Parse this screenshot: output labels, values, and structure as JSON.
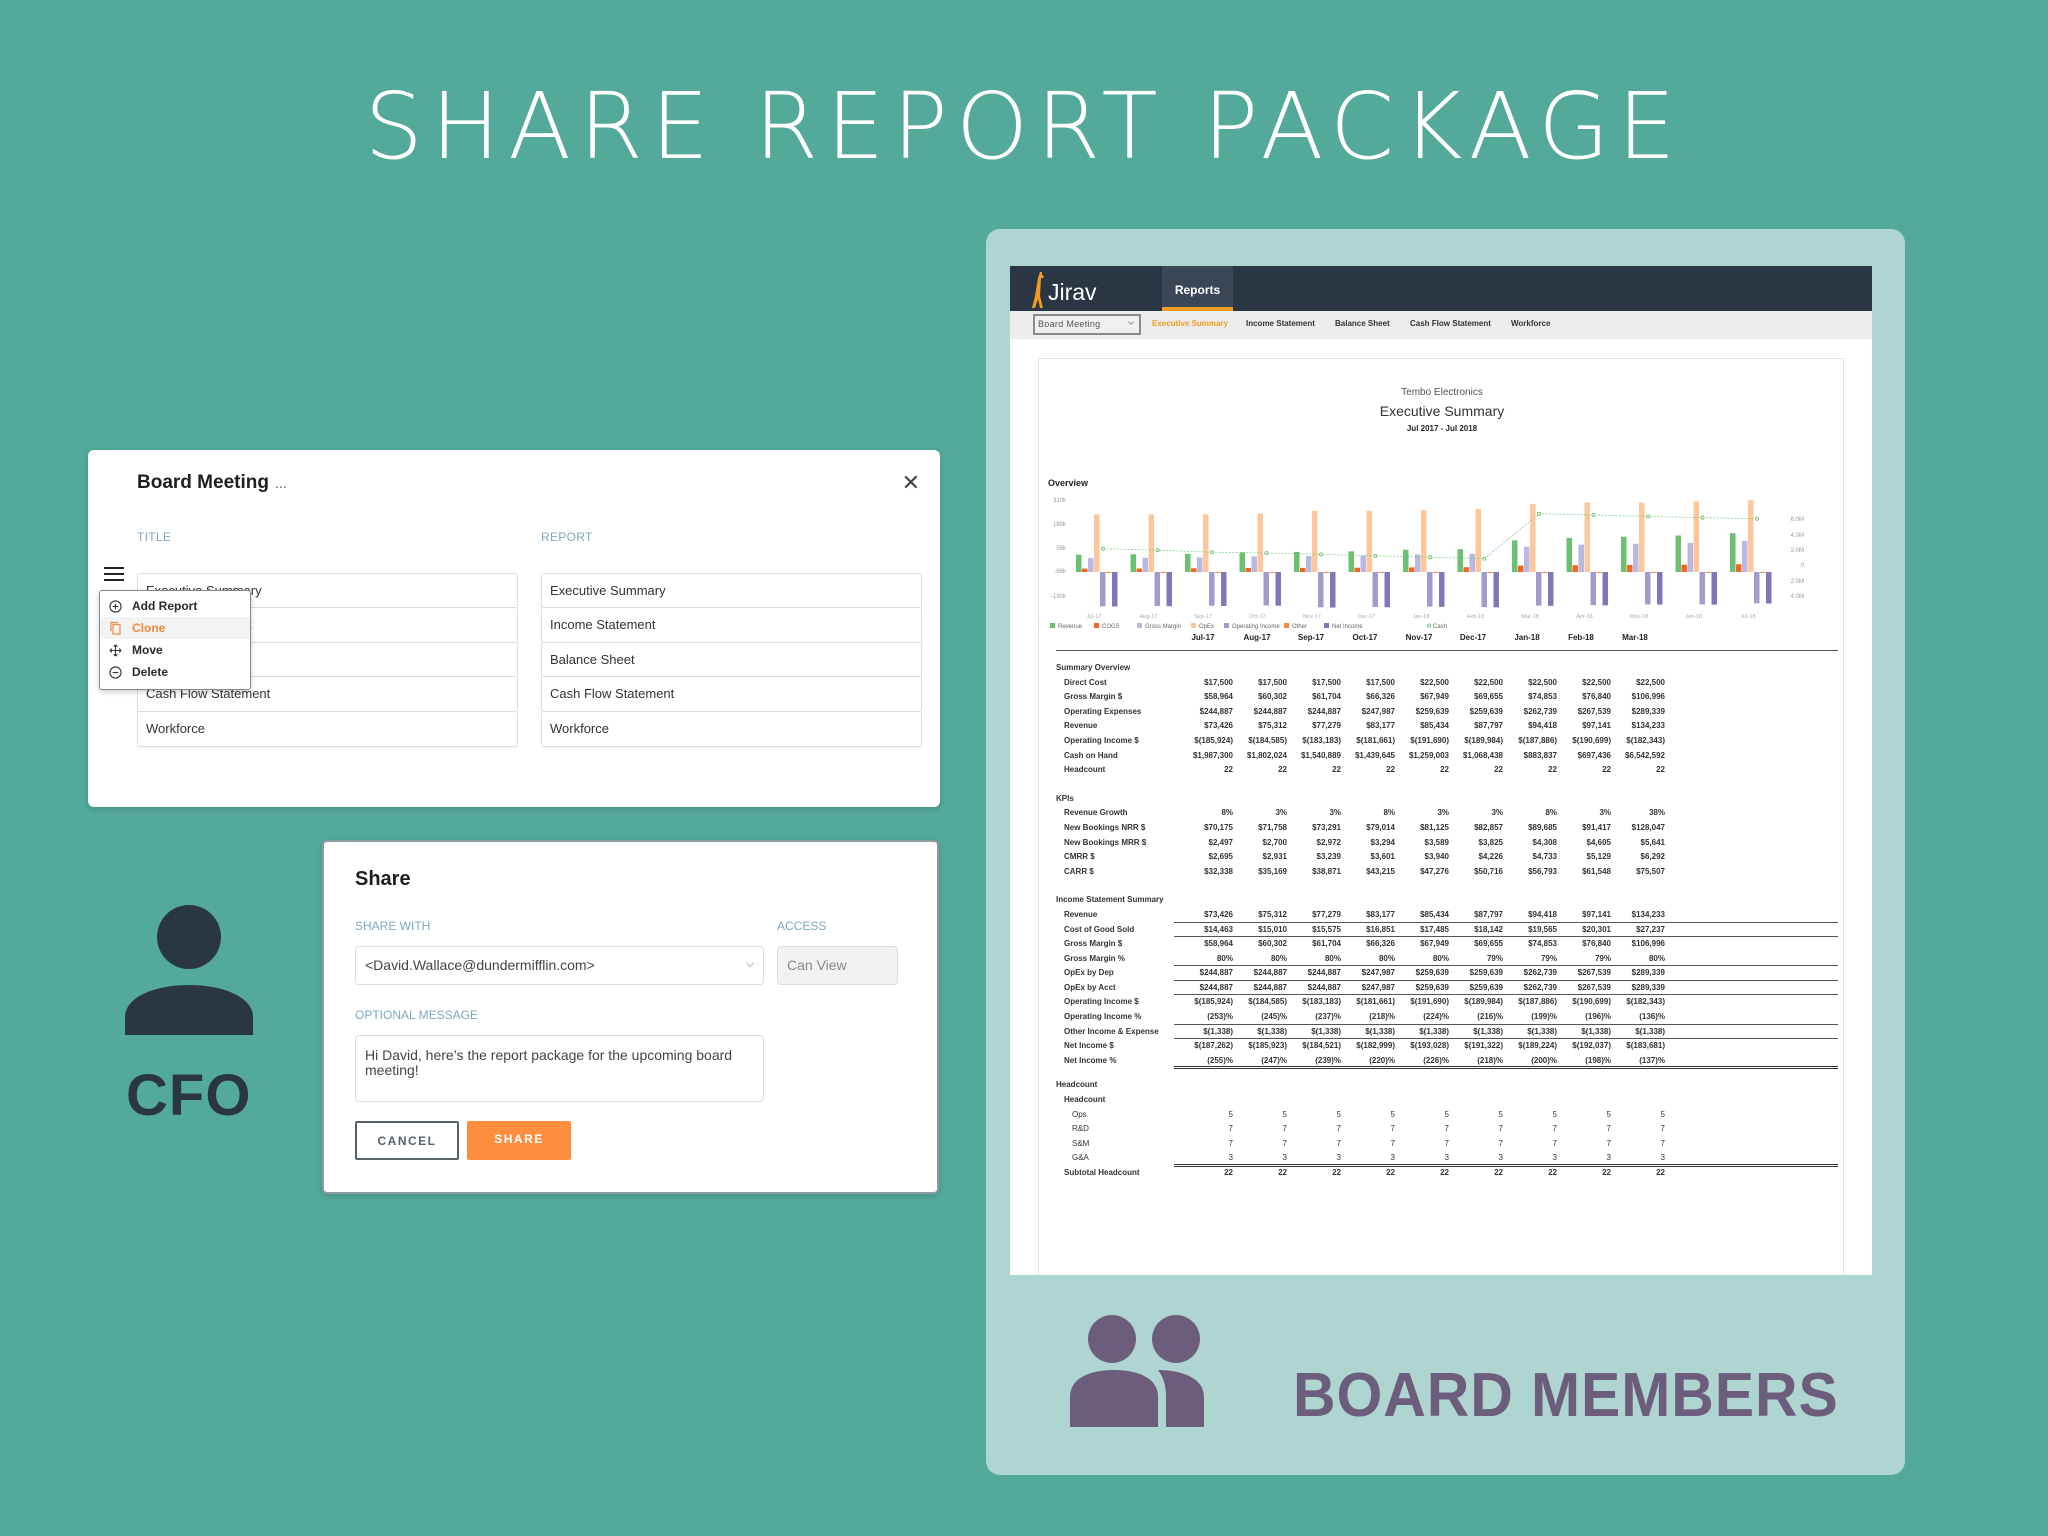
{
  "hero": {
    "title": "SHARE REPORT PACKAGE"
  },
  "board_meeting_modal": {
    "title": "Board Meeting",
    "title_ellipsis": "...",
    "close_icon": "close-icon",
    "columns": {
      "title": "TITLE",
      "report": "REPORT"
    },
    "rows": [
      {
        "title": "Executive Summary",
        "report": "Executive Summary"
      },
      {
        "title": "Income Statement",
        "report": "Income Statement"
      },
      {
        "title": "Balance Sheet",
        "report": "Balance Sheet"
      },
      {
        "title": "Cash Flow Statement",
        "report": "Cash Flow Statement"
      },
      {
        "title": "Workforce",
        "report": "Workforce"
      }
    ],
    "context_menu": {
      "items": [
        {
          "label": "Add Report",
          "icon": "plus-circle-icon"
        },
        {
          "label": "Clone",
          "icon": "copy-icon",
          "active": true
        },
        {
          "label": "Move",
          "icon": "move-arrows-icon"
        },
        {
          "label": "Delete",
          "icon": "minus-circle-icon"
        }
      ]
    }
  },
  "share_modal": {
    "title": "Share",
    "share_with_label": "SHARE WITH",
    "share_with_value": "<David.Wallace@dundermifflin.com>",
    "access_label": "ACCESS",
    "access_value": "Can View",
    "message_label": "OPTIONAL MESSAGE",
    "message_value": "Hi David, here’s the report package for the upcoming board meeting!",
    "cancel_label": "CANCEL",
    "share_label": "SHARE"
  },
  "cfo": {
    "label": "CFO"
  },
  "board_members": {
    "label": "BOARD MEMBERS"
  },
  "app": {
    "logo": "Jirav",
    "nav_tab": "Reports",
    "package_select": "Board Meeting",
    "sub_tabs": [
      {
        "label": "Executive Summary",
        "active": true
      },
      {
        "label": "Income Statement"
      },
      {
        "label": "Balance Sheet"
      },
      {
        "label": "Cash Flow Statement"
      },
      {
        "label": "Workforce"
      }
    ],
    "report": {
      "company": "Tembo Electronics",
      "title": "Executive Summary",
      "range": "Jul 2017 - Jul 2018",
      "overview_label": "Overview"
    }
  },
  "colors": {
    "background": "#53a99a",
    "tablet": "#afd5d1",
    "app_header": "#2b3645",
    "accent_orange": "#f39c1f",
    "share_button": "#fd8e3e",
    "cfo": "#2a3644",
    "board": "#6d5d7c",
    "label_blue": "#7aa8c2"
  },
  "chart_data": {
    "type": "bar",
    "title": "Overview",
    "categories": [
      "Jul-17",
      "Aug-17",
      "Sep-17",
      "Oct-17",
      "Nov-17",
      "Dec-17",
      "Jan-18",
      "Feb-18",
      "Mar-18",
      "Apr-18",
      "May-18",
      "Jun-18",
      "Jul-18"
    ],
    "left_axis": {
      "ticks": [
        "310k",
        "180k",
        "56k",
        "-68k",
        "-190k"
      ],
      "range": [
        -190000,
        310000
      ]
    },
    "right_axis": {
      "ticks": [
        "6.0M",
        "4.0M",
        "2.0M",
        "0",
        "2.0M",
        "4.0M"
      ],
      "range": [
        -4000000,
        6000000
      ]
    },
    "legend": [
      "Revenue",
      "COGS",
      "Gross Margin",
      "OpEx",
      "Operating Income",
      "Other",
      "Net Income",
      "Cash"
    ],
    "series": [
      {
        "name": "Revenue",
        "color": "#6cc070",
        "values": [
          73426,
          75312,
          77279,
          83177,
          85434,
          87797,
          94418,
          97141,
          134233,
          145000,
          150000,
          155000,
          165000
        ]
      },
      {
        "name": "COGS",
        "color": "#f26522",
        "values": [
          14463,
          15010,
          15575,
          16851,
          17485,
          18142,
          19565,
          20301,
          27237,
          29000,
          30000,
          31000,
          33000
        ]
      },
      {
        "name": "Gross Margin",
        "color": "#b9b8e0",
        "values": [
          58964,
          60302,
          61704,
          66326,
          67949,
          69655,
          74853,
          76840,
          106996,
          116000,
          120000,
          124000,
          132000
        ]
      },
      {
        "name": "OpEx",
        "color": "#fcc89b",
        "values": [
          244887,
          244887,
          244887,
          247987,
          259639,
          259639,
          262739,
          267539,
          289339,
          295000,
          295000,
          300000,
          305000
        ]
      },
      {
        "name": "Operating Income",
        "color": "#a29ccc",
        "values": [
          -185924,
          -184585,
          -183183,
          -181661,
          -191690,
          -189984,
          -187886,
          -190699,
          -182343,
          -180000,
          -176000,
          -176000,
          -170000
        ]
      },
      {
        "name": "Other",
        "color": "#f5883a",
        "values": [
          -1338,
          -1338,
          -1338,
          -1338,
          -1338,
          -1338,
          -1338,
          -1338,
          -1338,
          -1338,
          -1338,
          -1338,
          -1338
        ]
      },
      {
        "name": "Net Income",
        "color": "#7f78b8",
        "values": [
          -187262,
          -185923,
          -184521,
          -182999,
          -193028,
          -191322,
          -189224,
          -192037,
          -183681,
          -181000,
          -177000,
          -177000,
          -171000
        ]
      },
      {
        "name": "Cash",
        "type": "line",
        "color": "#6cc070",
        "values": [
          1987300,
          1802024,
          1540889,
          1439645,
          1259003,
          1068438,
          883837,
          697436,
          6542592,
          6400000,
          6200000,
          6050000,
          5900000
        ]
      }
    ]
  },
  "table": {
    "columns": [
      "Jul-17",
      "Aug-17",
      "Sep-17",
      "Oct-17",
      "Nov-17",
      "Dec-17",
      "Jan-18",
      "Feb-18",
      "Mar-18"
    ],
    "sections": [
      {
        "title": "Summary Overview",
        "rows": [
          {
            "label": "Direct Cost",
            "values": [
              "$17,500",
              "$17,500",
              "$17,500",
              "$17,500",
              "$22,500",
              "$22,500",
              "$22,500",
              "$22,500",
              "$22,500"
            ]
          },
          {
            "label": "Gross Margin $",
            "values": [
              "$58,964",
              "$60,302",
              "$61,704",
              "$66,326",
              "$67,949",
              "$69,655",
              "$74,853",
              "$76,840",
              "$106,996"
            ]
          },
          {
            "label": "Operating Expenses",
            "values": [
              "$244,887",
              "$244,887",
              "$244,887",
              "$247,987",
              "$259,639",
              "$259,639",
              "$262,739",
              "$267,539",
              "$289,339"
            ]
          },
          {
            "label": "Revenue",
            "values": [
              "$73,426",
              "$75,312",
              "$77,279",
              "$83,177",
              "$85,434",
              "$87,797",
              "$94,418",
              "$97,141",
              "$134,233"
            ]
          },
          {
            "label": "Operating Income $",
            "values": [
              "$(185,924)",
              "$(184,585)",
              "$(183,183)",
              "$(181,661)",
              "$(191,690)",
              "$(189,984)",
              "$(187,886)",
              "$(190,699)",
              "$(182,343)"
            ]
          },
          {
            "label": "Cash on Hand",
            "values": [
              "$1,987,300",
              "$1,802,024",
              "$1,540,889",
              "$1,439,645",
              "$1,259,003",
              "$1,068,438",
              "$883,837",
              "$697,436",
              "$6,542,592"
            ]
          },
          {
            "label": "Headcount",
            "values": [
              "22",
              "22",
              "22",
              "22",
              "22",
              "22",
              "22",
              "22",
              "22"
            ]
          }
        ]
      },
      {
        "title": "KPIs",
        "rows": [
          {
            "label": "Revenue Growth",
            "values": [
              "8%",
              "3%",
              "3%",
              "8%",
              "3%",
              "3%",
              "8%",
              "3%",
              "38%"
            ]
          },
          {
            "label": "New Bookings NRR $",
            "values": [
              "$70,175",
              "$71,758",
              "$73,291",
              "$79,014",
              "$81,125",
              "$82,857",
              "$89,685",
              "$91,417",
              "$128,047"
            ]
          },
          {
            "label": "New Bookings MRR $",
            "values": [
              "$2,497",
              "$2,700",
              "$2,972",
              "$3,294",
              "$3,589",
              "$3,825",
              "$4,308",
              "$4,605",
              "$5,641"
            ]
          },
          {
            "label": "CMRR $",
            "values": [
              "$2,695",
              "$2,931",
              "$3,239",
              "$3,601",
              "$3,940",
              "$4,226",
              "$4,733",
              "$5,129",
              "$6,292"
            ]
          },
          {
            "label": "CARR $",
            "values": [
              "$32,338",
              "$35,169",
              "$38,871",
              "$43,215",
              "$47,276",
              "$50,716",
              "$56,793",
              "$61,548",
              "$75,507"
            ]
          }
        ]
      },
      {
        "title": "Income Statement Summary",
        "rows": [
          {
            "label": "Revenue",
            "rule": true,
            "values": [
              "$73,426",
              "$75,312",
              "$77,279",
              "$83,177",
              "$85,434",
              "$87,797",
              "$94,418",
              "$97,141",
              "$134,233"
            ]
          },
          {
            "label": "Cost of Good Sold",
            "rule": true,
            "values": [
              "$14,463",
              "$15,010",
              "$15,575",
              "$16,851",
              "$17,485",
              "$18,142",
              "$19,565",
              "$20,301",
              "$27,237"
            ]
          },
          {
            "label": "Gross Margin $",
            "values": [
              "$58,964",
              "$60,302",
              "$61,704",
              "$66,326",
              "$67,949",
              "$69,655",
              "$74,853",
              "$76,840",
              "$106,996"
            ]
          },
          {
            "label": "Gross Margin %",
            "rule": true,
            "values": [
              "80%",
              "80%",
              "80%",
              "80%",
              "80%",
              "79%",
              "79%",
              "79%",
              "80%"
            ]
          },
          {
            "label": "OpEx by Dep",
            "rule": true,
            "values": [
              "$244,887",
              "$244,887",
              "$244,887",
              "$247,987",
              "$259,639",
              "$259,639",
              "$262,739",
              "$267,539",
              "$289,339"
            ]
          },
          {
            "label": "OpEx by Acct",
            "rule": true,
            "values": [
              "$244,887",
              "$244,887",
              "$244,887",
              "$247,987",
              "$259,639",
              "$259,639",
              "$262,739",
              "$267,539",
              "$289,339"
            ]
          },
          {
            "label": "Operating Income $",
            "values": [
              "$(185,924)",
              "$(184,585)",
              "$(183,183)",
              "$(181,661)",
              "$(191,690)",
              "$(189,984)",
              "$(187,886)",
              "$(190,699)",
              "$(182,343)"
            ]
          },
          {
            "label": "Operating Income %",
            "rule": true,
            "values": [
              "(253)%",
              "(245)%",
              "(237)%",
              "(218)%",
              "(224)%",
              "(216)%",
              "(199)%",
              "(196)%",
              "(136)%"
            ]
          },
          {
            "label": "Other Income & Expense",
            "rule": true,
            "values": [
              "$(1,338)",
              "$(1,338)",
              "$(1,338)",
              "$(1,338)",
              "$(1,338)",
              "$(1,338)",
              "$(1,338)",
              "$(1,338)",
              "$(1,338)"
            ]
          },
          {
            "label": "Net Income $",
            "values": [
              "$(187,262)",
              "$(185,923)",
              "$(184,521)",
              "$(182,999)",
              "$(193,028)",
              "$(191,322)",
              "$(189,224)",
              "$(192,037)",
              "$(183,681)"
            ]
          },
          {
            "label": "Net Income %",
            "dbl": true,
            "values": [
              "(255)%",
              "(247)%",
              "(239)%",
              "(220)%",
              "(226)%",
              "(218)%",
              "(200)%",
              "(198)%",
              "(137)%"
            ]
          }
        ]
      },
      {
        "title": "Headcount",
        "subtitle": "Headcount",
        "rows": [
          {
            "label": "Ops",
            "light": true,
            "values": [
              "5",
              "5",
              "5",
              "5",
              "5",
              "5",
              "5",
              "5",
              "5"
            ]
          },
          {
            "label": "R&D",
            "light": true,
            "values": [
              "7",
              "7",
              "7",
              "7",
              "7",
              "7",
              "7",
              "7",
              "7"
            ]
          },
          {
            "label": "S&M",
            "light": true,
            "values": [
              "7",
              "7",
              "7",
              "7",
              "7",
              "7",
              "7",
              "7",
              "7"
            ]
          },
          {
            "label": "G&A",
            "light": true,
            "dbl": true,
            "values": [
              "3",
              "3",
              "3",
              "3",
              "3",
              "3",
              "3",
              "3",
              "3"
            ]
          },
          {
            "label": "Subtotal Headcount",
            "subtotal": true,
            "values": [
              "22",
              "22",
              "22",
              "22",
              "22",
              "22",
              "22",
              "22",
              "22"
            ]
          }
        ]
      }
    ]
  }
}
